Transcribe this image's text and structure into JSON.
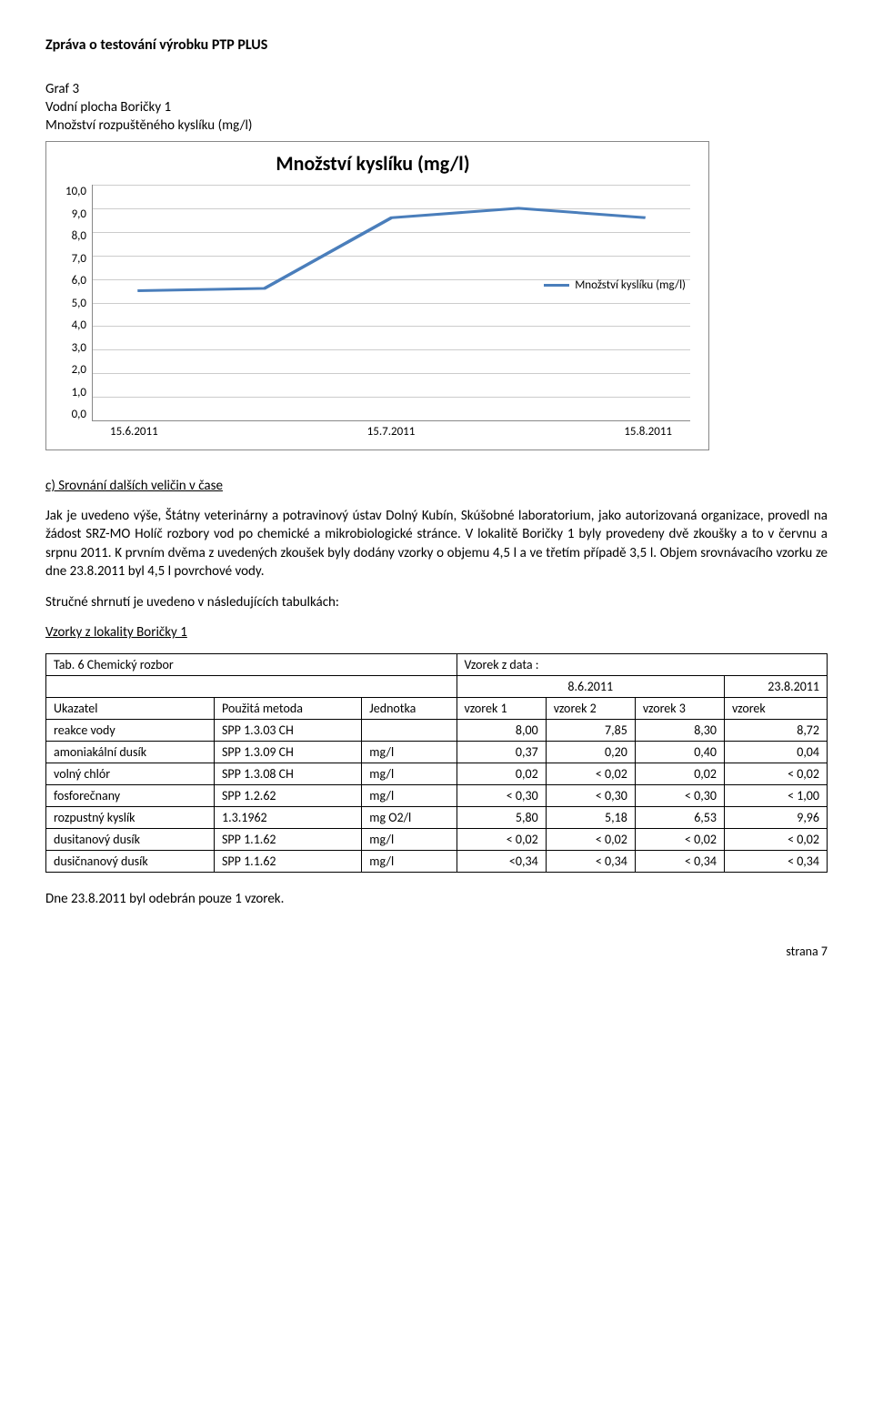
{
  "header": "Zpráva o testování výrobku PTP PLUS",
  "graf": {
    "label": "Graf 3",
    "subtitle1": "Vodní plocha Boričky 1",
    "subtitle2": "Množství rozpuštěného kyslíku (mg/l)"
  },
  "chart": {
    "type": "line",
    "title": "Množství kyslíku (mg/l)",
    "y_ticks": [
      "10,0",
      "9,0",
      "8,0",
      "7,0",
      "6,0",
      "5,0",
      "4,0",
      "3,0",
      "2,0",
      "1,0",
      "0,0"
    ],
    "x_labels": [
      "15.6.2011",
      "15.7.2011",
      "15.8.2011"
    ],
    "ylim": [
      0,
      10
    ],
    "values": [
      5.5,
      5.6,
      8.6,
      9.0,
      8.6
    ],
    "line_color": "#4a7ebb",
    "line_width": 3,
    "grid_color": "#cccccc",
    "background_color": "#ffffff",
    "legend_label": "Množství kyslíku (mg/l)"
  },
  "section_c_title": "c) Srovnání dalších veličin  v čase",
  "para1": "Jak je uvedeno výše, Štátny veterinárny a potravinový ústav Dolný Kubín, Skúšobné laboratorium, jako autorizovaná organizace, provedl na žádost SRZ-MO Holíč rozbory vod po chemické a mikrobiologické stránce. V lokalitě Boričky 1 byly provedeny dvě zkoušky a to v červnu a srpnu 2011. K prvním dvěma z uvedených zkoušek byly dodány vzorky o objemu 4,5 l a ve třetím případě 3,5 l. Objem srovnávacího vzorku ze dne 23.8.2011 byl 4,5 l povrchové vody.",
  "para2": "Stručné shrnutí je uvedeno v následujících tabulkách:",
  "samples_title": "Vzorky z lokality Boričky 1",
  "table": {
    "caption": "Tab. 6 Chemický rozbor",
    "vzorek_header": "Vzorek z data :",
    "dates": [
      "8.6.2011",
      "23.8.2011"
    ],
    "col_headers": [
      "Ukazatel",
      "Použitá metoda",
      "Jednotka",
      "vzorek 1",
      "vzorek 2",
      "vzorek 3",
      "vzorek"
    ],
    "rows": [
      [
        "reakce vody",
        "SPP 1.3.03 CH",
        "",
        "8,00",
        "7,85",
        "8,30",
        "8,72"
      ],
      [
        "amoniakální dusík",
        "SPP 1.3.09 CH",
        "mg/l",
        "0,37",
        "0,20",
        "0,40",
        "0,04"
      ],
      [
        "volný chlór",
        "SPP 1.3.08 CH",
        "mg/l",
        "0,02",
        "< 0,02",
        "0,02",
        "< 0,02"
      ],
      [
        "fosforečnany",
        "SPP 1.2.62",
        "mg/l",
        "< 0,30",
        "< 0,30",
        "< 0,30",
        "< 1,00"
      ],
      [
        "rozpustný kyslík",
        "1.3.1962",
        "mg O2/l",
        "5,80",
        "5,18",
        "6,53",
        "9,96"
      ],
      [
        "dusitanový dusík",
        "SPP 1.1.62",
        "mg/l",
        "< 0,02",
        "< 0,02",
        "< 0,02",
        "< 0,02"
      ],
      [
        "dusičnanový dusík",
        "SPP 1.1.62",
        "mg/l",
        "<0,34",
        "< 0,34",
        "< 0,34",
        "< 0,34"
      ]
    ]
  },
  "footer_note": "Dne 23.8.2011 byl odebrán pouze 1 vzorek.",
  "page_footer": "strana  7"
}
